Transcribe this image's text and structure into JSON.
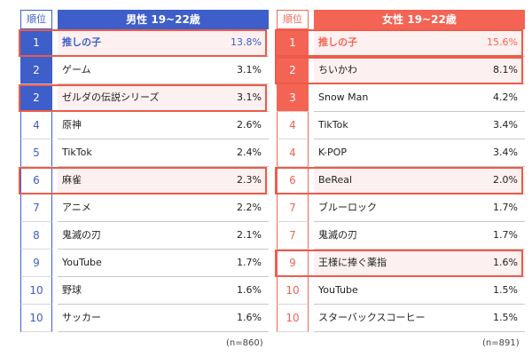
{
  "colors": {
    "male_accent": "#3e5ec9",
    "female_accent": "#f36454",
    "male_top_bg": "#fdf0f0",
    "highlight_border": "#ec5b4a"
  },
  "male": {
    "rank_header": "順位",
    "title": "男性 19~22歳",
    "n_label": "(n=860)",
    "rows": [
      {
        "rank": "1",
        "name": "推しの子",
        "pct": "13.8%",
        "filled": true,
        "highlight": true,
        "bold": true
      },
      {
        "rank": "2",
        "name": "ゲーム",
        "pct": "3.1%",
        "filled": true,
        "highlight": false,
        "bold": false
      },
      {
        "rank": "2",
        "name": "ゼルダの伝説シリーズ",
        "pct": "3.1%",
        "filled": true,
        "highlight": true,
        "bold": false
      },
      {
        "rank": "4",
        "name": "原神",
        "pct": "2.6%",
        "filled": false,
        "highlight": false,
        "bold": false
      },
      {
        "rank": "5",
        "name": "TikTok",
        "pct": "2.4%",
        "filled": false,
        "highlight": false,
        "bold": false
      },
      {
        "rank": "6",
        "name": "麻雀",
        "pct": "2.3%",
        "filled": false,
        "highlight": true,
        "bold": false
      },
      {
        "rank": "7",
        "name": "アニメ",
        "pct": "2.2%",
        "filled": false,
        "highlight": false,
        "bold": false
      },
      {
        "rank": "8",
        "name": "鬼滅の刃",
        "pct": "2.1%",
        "filled": false,
        "highlight": false,
        "bold": false
      },
      {
        "rank": "9",
        "name": "YouTube",
        "pct": "1.7%",
        "filled": false,
        "highlight": false,
        "bold": false
      },
      {
        "rank": "10",
        "name": "野球",
        "pct": "1.6%",
        "filled": false,
        "highlight": false,
        "bold": false
      },
      {
        "rank": "10",
        "name": "サッカー",
        "pct": "1.6%",
        "filled": false,
        "highlight": false,
        "bold": false
      }
    ]
  },
  "female": {
    "rank_header": "順位",
    "title": "女性 19~22歳",
    "n_label": "(n=891)",
    "rows": [
      {
        "rank": "1",
        "name": "推しの子",
        "pct": "15.6%",
        "filled": true,
        "highlight": true,
        "bold": true
      },
      {
        "rank": "2",
        "name": "ちいかわ",
        "pct": "8.1%",
        "filled": true,
        "highlight": true,
        "bold": false
      },
      {
        "rank": "3",
        "name": "Snow Man",
        "pct": "4.2%",
        "filled": true,
        "highlight": false,
        "bold": false
      },
      {
        "rank": "4",
        "name": "TikTok",
        "pct": "3.4%",
        "filled": false,
        "highlight": false,
        "bold": false
      },
      {
        "rank": "4",
        "name": "K-POP",
        "pct": "3.4%",
        "filled": false,
        "highlight": false,
        "bold": false
      },
      {
        "rank": "6",
        "name": "BeReal",
        "pct": "2.0%",
        "filled": false,
        "highlight": true,
        "bold": false
      },
      {
        "rank": "7",
        "name": "ブルーロック",
        "pct": "1.7%",
        "filled": false,
        "highlight": false,
        "bold": false
      },
      {
        "rank": "7",
        "name": "鬼滅の刃",
        "pct": "1.7%",
        "filled": false,
        "highlight": false,
        "bold": false
      },
      {
        "rank": "9",
        "name": "王様に捧ぐ薬指",
        "pct": "1.6%",
        "filled": false,
        "highlight": true,
        "bold": false
      },
      {
        "rank": "10",
        "name": "YouTube",
        "pct": "1.5%",
        "filled": false,
        "highlight": false,
        "bold": false
      },
      {
        "rank": "10",
        "name": "スターバックスコーヒー",
        "pct": "1.5%",
        "filled": false,
        "highlight": false,
        "bold": false
      }
    ]
  }
}
